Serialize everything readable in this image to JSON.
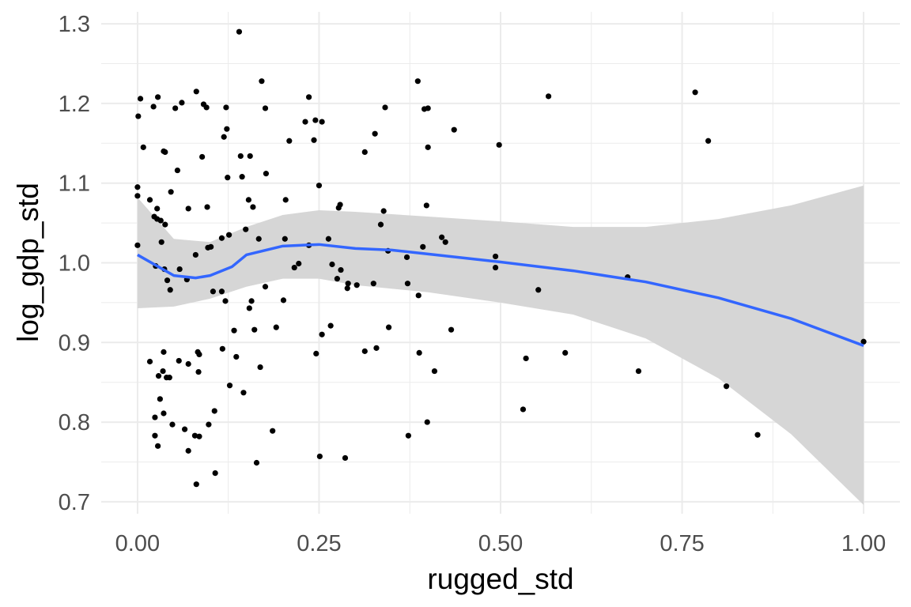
{
  "chart_data": {
    "type": "scatter",
    "title": "",
    "xlabel": "rugged_std",
    "ylabel": "log_gdp_std",
    "xlim": [
      -0.05,
      1.05
    ],
    "ylim": [
      0.685,
      1.315
    ],
    "grid": true,
    "legend": "none",
    "x_ticks": [
      0,
      0.25,
      0.5,
      0.75,
      1.0
    ],
    "x_tick_labels": [
      "0.00",
      "0.25",
      "0.50",
      "0.75",
      "1.00"
    ],
    "y_ticks": [
      0.7,
      0.8,
      0.9,
      1.0,
      1.1,
      1.2,
      1.3
    ],
    "y_tick_labels": [
      "0.7",
      "0.8",
      "0.9",
      "1.0",
      "1.1",
      "1.2",
      "1.3"
    ],
    "colors": {
      "points": "#000000",
      "smooth": "#3366FF",
      "ribbon": "#d6d6d6",
      "grid": "#ebebeb"
    },
    "points": [
      [
        0,
        1.022
      ],
      [
        0,
        1.095
      ],
      [
        0,
        1.084
      ],
      [
        0.001,
        1.184
      ],
      [
        0.004,
        1.206
      ],
      [
        0.008,
        1.145
      ],
      [
        0.017,
        1.079
      ],
      [
        0.017,
        0.876
      ],
      [
        0.022,
        1.196
      ],
      [
        0.023,
        1.058
      ],
      [
        0.024,
        0.806
      ],
      [
        0.024,
        0.783
      ],
      [
        0.025,
        0.996
      ],
      [
        0.027,
        1.055
      ],
      [
        0.027,
        1.068
      ],
      [
        0.028,
        1.208
      ],
      [
        0.028,
        0.77
      ],
      [
        0.029,
        0.858
      ],
      [
        0.031,
        0.829
      ],
      [
        0.032,
        1.053
      ],
      [
        0.033,
        1.026
      ],
      [
        0.035,
        0.864
      ],
      [
        0.036,
        0.888
      ],
      [
        0.036,
        0.811
      ],
      [
        0.036,
        1.14
      ],
      [
        0.038,
        1.139
      ],
      [
        0.038,
        1.048
      ],
      [
        0.037,
        0.992
      ],
      [
        0.04,
        0.856
      ],
      [
        0.041,
        0.978
      ],
      [
        0.044,
        0.856
      ],
      [
        0.045,
        0.966
      ],
      [
        0.046,
        1.089
      ],
      [
        0.048,
        0.797
      ],
      [
        0.052,
        1.194
      ],
      [
        0.055,
        1.116
      ],
      [
        0.057,
        0.877
      ],
      [
        0.058,
        0.992
      ],
      [
        0.061,
        1.201
      ],
      [
        0.065,
        0.791
      ],
      [
        0.068,
        0.979
      ],
      [
        0.07,
        0.873
      ],
      [
        0.07,
        0.764
      ],
      [
        0.07,
        1.068
      ],
      [
        0.079,
        0.783
      ],
      [
        0.08,
        1.01
      ],
      [
        0.081,
        1.215
      ],
      [
        0.081,
        0.722
      ],
      [
        0.083,
        0.888
      ],
      [
        0.084,
        0.863
      ],
      [
        0.085,
        0.885
      ],
      [
        0.085,
        0.782
      ],
      [
        0.089,
        1.133
      ],
      [
        0.091,
        1.199
      ],
      [
        0.095,
        1.195
      ],
      [
        0.096,
        1.07
      ],
      [
        0.097,
        1.019
      ],
      [
        0.098,
        0.797
      ],
      [
        0.101,
        1.02
      ],
      [
        0.104,
        0.964
      ],
      [
        0.106,
        0.814
      ],
      [
        0.107,
        0.736
      ],
      [
        0.116,
        0.964
      ],
      [
        0.116,
        1.031
      ],
      [
        0.117,
        0.892
      ],
      [
        0.119,
        1.158
      ],
      [
        0.121,
        0.952
      ],
      [
        0.122,
        1.195
      ],
      [
        0.123,
        1.168
      ],
      [
        0.124,
        1.107
      ],
      [
        0.126,
        1.035
      ],
      [
        0.127,
        0.846
      ],
      [
        0.133,
        0.915
      ],
      [
        0.136,
        0.882
      ],
      [
        0.14,
        1.29
      ],
      [
        0.142,
        1.134
      ],
      [
        0.144,
        1.108
      ],
      [
        0.146,
        0.837
      ],
      [
        0.149,
        1.042
      ],
      [
        0.153,
        1.079
      ],
      [
        0.154,
        0.943
      ],
      [
        0.155,
        1.134
      ],
      [
        0.157,
        0.952
      ],
      [
        0.159,
        1.07
      ],
      [
        0.161,
        0.916
      ],
      [
        0.164,
        0.749
      ],
      [
        0.167,
        1.03
      ],
      [
        0.169,
        0.869
      ],
      [
        0.171,
        1.228
      ],
      [
        0.176,
        0.97
      ],
      [
        0.176,
        1.194
      ],
      [
        0.177,
        1.112
      ],
      [
        0.186,
        0.789
      ],
      [
        0.191,
        0.919
      ],
      [
        0.201,
        0.953
      ],
      [
        0.203,
        1.03
      ],
      [
        0.204,
        1.079
      ],
      [
        0.209,
        1.153
      ],
      [
        0.216,
        0.994
      ],
      [
        0.222,
        0.999
      ],
      [
        0.231,
        1.177
      ],
      [
        0.236,
        1.208
      ],
      [
        0.236,
        1.022
      ],
      [
        0.243,
        1.154
      ],
      [
        0.245,
        1.179
      ],
      [
        0.246,
        0.886
      ],
      [
        0.25,
        1.097
      ],
      [
        0.251,
        0.757
      ],
      [
        0.254,
        1.177
      ],
      [
        0.254,
        0.91
      ],
      [
        0.263,
        1.03
      ],
      [
        0.266,
        0.921
      ],
      [
        0.268,
        0.998
      ],
      [
        0.275,
        0.98
      ],
      [
        0.277,
        1.069
      ],
      [
        0.279,
        1.073
      ],
      [
        0.28,
        0.991
      ],
      [
        0.286,
        0.755
      ],
      [
        0.289,
        0.968
      ],
      [
        0.29,
        0.974
      ],
      [
        0.302,
        0.972
      ],
      [
        0.313,
        1.139
      ],
      [
        0.313,
        0.889
      ],
      [
        0.325,
        0.974
      ],
      [
        0.327,
        1.162
      ],
      [
        0.329,
        0.893
      ],
      [
        0.335,
        1.048
      ],
      [
        0.339,
        1.065
      ],
      [
        0.341,
        1.195
      ],
      [
        0.345,
        1.015
      ],
      [
        0.346,
        0.919
      ],
      [
        0.371,
        1.007
      ],
      [
        0.372,
        0.974
      ],
      [
        0.373,
        0.783
      ],
      [
        0.386,
        1.228
      ],
      [
        0.387,
        0.959
      ],
      [
        0.388,
        0.887
      ],
      [
        0.393,
        1.02
      ],
      [
        0.395,
        1.193
      ],
      [
        0.398,
        1.072
      ],
      [
        0.399,
        0.8
      ],
      [
        0.4,
        1.145
      ],
      [
        0.4,
        1.194
      ],
      [
        0.409,
        0.864
      ],
      [
        0.419,
        1.032
      ],
      [
        0.424,
        1.026
      ],
      [
        0.436,
        1.167
      ],
      [
        0.432,
        0.916
      ],
      [
        0.493,
        0.994
      ],
      [
        0.493,
        1.008
      ],
      [
        0.498,
        1.148
      ],
      [
        0.531,
        0.816
      ],
      [
        0.535,
        0.88
      ],
      [
        0.552,
        0.966
      ],
      [
        0.566,
        1.209
      ],
      [
        0.589,
        0.887
      ],
      [
        0.675,
        0.982
      ],
      [
        0.69,
        0.864
      ],
      [
        0.768,
        1.214
      ],
      [
        0.786,
        1.153
      ],
      [
        0.811,
        0.845
      ],
      [
        0.854,
        0.784
      ],
      [
        1.0,
        0.901
      ]
    ],
    "smooth": {
      "x": [
        0,
        0.05,
        0.08,
        0.1,
        0.13,
        0.15,
        0.2,
        0.25,
        0.3,
        0.35,
        0.4,
        0.5,
        0.6,
        0.7,
        0.8,
        0.9,
        1.0
      ],
      "y": [
        1.01,
        0.984,
        0.981,
        0.984,
        0.995,
        1.01,
        1.021,
        1.023,
        1.018,
        1.016,
        1.011,
        1.001,
        0.99,
        0.976,
        0.956,
        0.93,
        0.896
      ]
    },
    "ribbon": {
      "x": [
        0,
        0.05,
        0.1,
        0.15,
        0.2,
        0.25,
        0.3,
        0.4,
        0.5,
        0.6,
        0.7,
        0.8,
        0.9,
        1.0
      ],
      "upper": [
        1.082,
        1.03,
        1.026,
        1.045,
        1.06,
        1.066,
        1.064,
        1.058,
        1.052,
        1.045,
        1.045,
        1.055,
        1.072,
        1.097
      ],
      "lower": [
        0.943,
        0.945,
        0.955,
        0.97,
        0.98,
        0.98,
        0.972,
        0.963,
        0.95,
        0.935,
        0.905,
        0.855,
        0.785,
        0.696
      ]
    }
  }
}
